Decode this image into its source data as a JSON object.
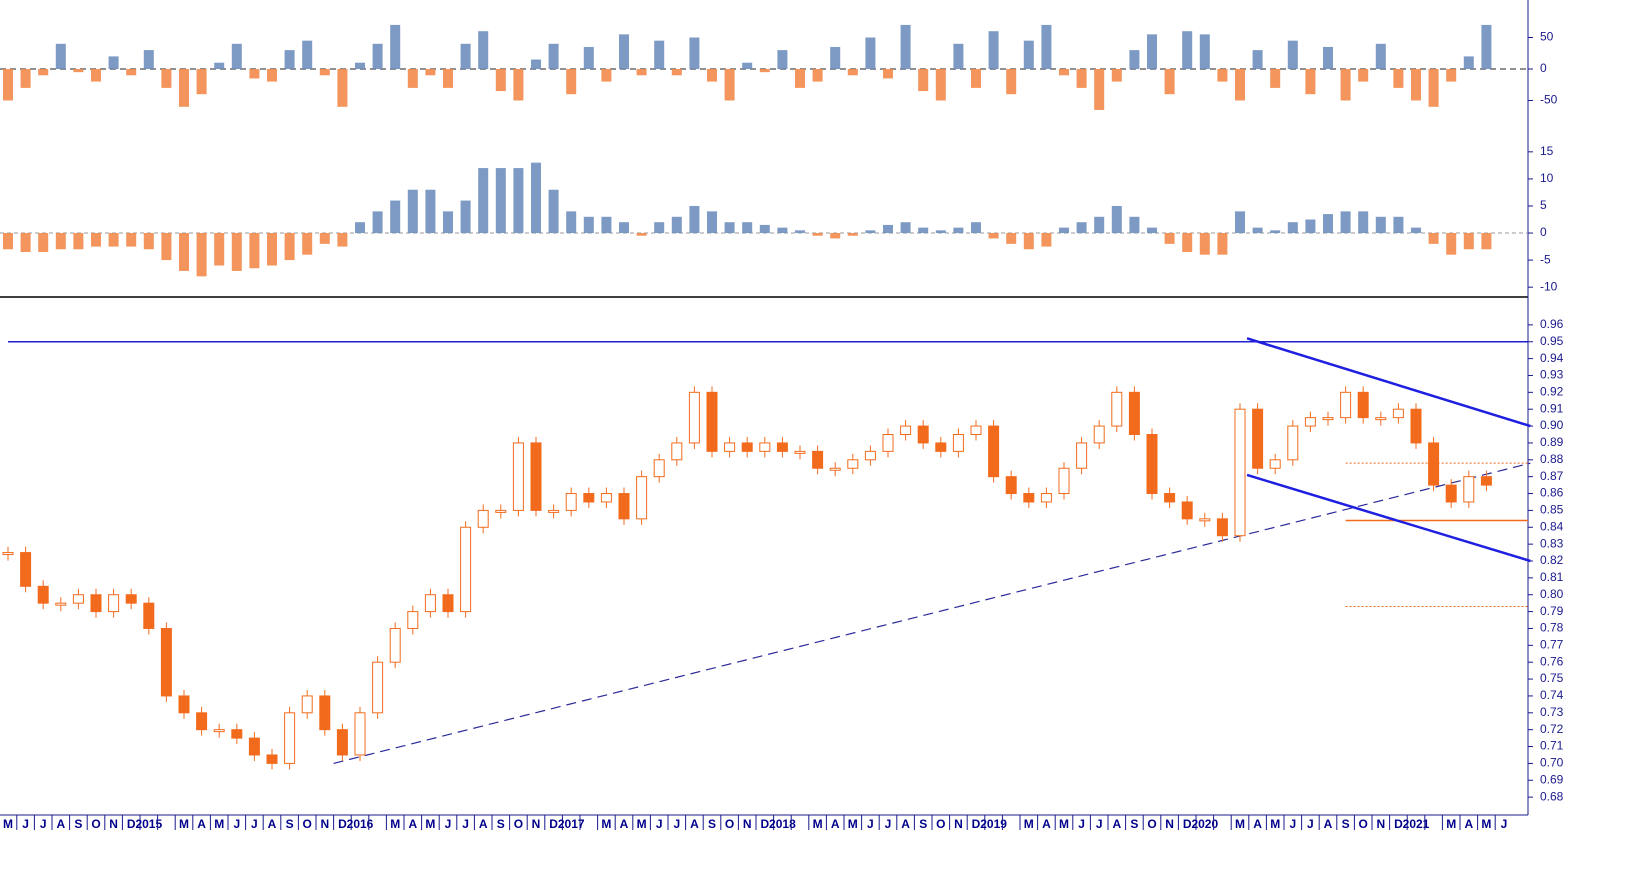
{
  "chart_data": [
    {
      "type": "bar",
      "pos_color": "#6f8fbf",
      "neg_color": "#f28a4a",
      "values": [
        -50,
        -30,
        -10,
        40,
        -5,
        -20,
        20,
        -10,
        30,
        -30,
        -60,
        -40,
        10,
        40,
        -15,
        -20,
        30,
        45,
        -10,
        -60,
        10,
        40,
        70,
        -30,
        -10,
        -30,
        40,
        60,
        -35,
        -50,
        15,
        40,
        -40,
        35,
        -20,
        55,
        -10,
        45,
        -10,
        50,
        -20,
        -50,
        10,
        -5,
        30,
        -30,
        -20,
        35,
        -10,
        50,
        -15,
        70,
        -35,
        -50,
        40,
        -30,
        60,
        -40,
        45,
        70,
        -10,
        -30,
        -65,
        -20,
        30,
        55,
        -40,
        60,
        55,
        -20,
        -50,
        30,
        -30,
        45,
        -40,
        35,
        -50,
        -20,
        40,
        -30,
        -50,
        -60,
        -20,
        20,
        70,
        null
      ],
      "ylim": [
        -100,
        100
      ],
      "yticks": [
        50,
        0,
        -50
      ]
    },
    {
      "type": "bar",
      "pos_color": "#6f8fbf",
      "neg_color": "#f28a4a",
      "values": [
        -3,
        -3.5,
        -3.5,
        -3,
        -3,
        -2.5,
        -2.5,
        -2.5,
        -3,
        -5,
        -7,
        -8,
        -6,
        -7,
        -6.5,
        -6,
        -5,
        -4,
        -2,
        -2.5,
        2,
        4,
        6,
        8,
        8,
        4,
        6,
        12,
        12,
        12,
        13,
        8,
        4,
        3,
        3,
        2,
        -0.5,
        2,
        3,
        5,
        4,
        2,
        2,
        1.5,
        1,
        0.5,
        -0.5,
        -1,
        -0.5,
        0.5,
        1.5,
        2,
        1,
        0.5,
        1,
        2,
        -1,
        -2,
        -3,
        -2.5,
        1,
        2,
        3,
        5,
        3,
        1,
        -2,
        -3.5,
        -4,
        -4,
        4,
        1,
        0.5,
        2,
        2.5,
        3.5,
        4,
        4,
        3,
        3,
        1,
        -2,
        -4,
        -3,
        -3,
        null
      ],
      "ylim": [
        -12,
        17
      ],
      "yticks": [
        15,
        10,
        5,
        0,
        -5,
        -10
      ]
    },
    {
      "type": "candlestick",
      "color": "#f26b1d",
      "categories": [
        "M",
        "J",
        "J",
        "A",
        "S",
        "O",
        "N",
        "D",
        "2015",
        null,
        "M",
        "A",
        "M",
        "J",
        "J",
        "A",
        "S",
        "O",
        "N",
        "D",
        "2016",
        null,
        "M",
        "A",
        "M",
        "J",
        "J",
        "A",
        "S",
        "O",
        "N",
        "D",
        "2017",
        null,
        "M",
        "A",
        "M",
        "J",
        "J",
        "A",
        "S",
        "O",
        "N",
        "D",
        "2018",
        null,
        "M",
        "A",
        "M",
        "J",
        "J",
        "A",
        "S",
        "O",
        "N",
        "D",
        "2019",
        null,
        "M",
        "A",
        "M",
        "J",
        "J",
        "A",
        "S",
        "O",
        "N",
        "D",
        "2020",
        null,
        "M",
        "A",
        "M",
        "J",
        "J",
        "A",
        "S",
        "O",
        "N",
        "D",
        "2021",
        null,
        "M",
        "A",
        "M",
        "J"
      ],
      "values": [
        0.825,
        0.805,
        0.795,
        0.795,
        0.8,
        0.79,
        0.8,
        0.795,
        0.78,
        0.74,
        0.73,
        0.72,
        0.72,
        0.715,
        0.705,
        0.7,
        0.73,
        0.74,
        0.72,
        0.705,
        0.73,
        0.76,
        0.78,
        0.79,
        0.8,
        0.79,
        0.84,
        0.85,
        0.85,
        0.89,
        0.85,
        0.85,
        0.86,
        0.855,
        0.86,
        0.845,
        0.87,
        0.88,
        0.89,
        0.92,
        0.885,
        0.89,
        0.885,
        0.89,
        0.885,
        0.885,
        0.875,
        0.875,
        0.88,
        0.885,
        0.895,
        0.9,
        0.89,
        0.885,
        0.895,
        0.9,
        0.87,
        0.86,
        0.855,
        0.86,
        0.875,
        0.89,
        0.9,
        0.92,
        0.895,
        0.86,
        0.855,
        0.845,
        0.845,
        0.835,
        0.91,
        0.875,
        0.88,
        0.9,
        0.905,
        0.905,
        0.92,
        0.905,
        0.905,
        0.91,
        0.89,
        0.865,
        0.855,
        0.87,
        0.865,
        null
      ],
      "ylim": [
        0.67,
        0.97
      ],
      "yticks": [
        0.68,
        0.69,
        {
          "value": 0.7,
          "label": "0.70"
        },
        0.71,
        0.72,
        0.73,
        0.74,
        0.75,
        0.76,
        0.77,
        0.78,
        0.79,
        {
          "value": 0.8,
          "label": "0.80"
        },
        0.81,
        0.82,
        0.83,
        0.84,
        0.85,
        0.86,
        0.87,
        0.88,
        0.89,
        {
          "value": 0.9,
          "label": "0.90"
        },
        0.91,
        0.92,
        0.93,
        0.94,
        0.95,
        0.96
      ],
      "levels": [
        {
          "value": 0.95,
          "x0": 0,
          "color": "#1f1fcf",
          "dash": false
        },
        {
          "value": 0.878,
          "x0": 76,
          "color": "#f26b1d",
          "dash": true
        },
        {
          "value": 0.844,
          "x0": 76,
          "color": "#f26b1d",
          "dash": false
        },
        {
          "value": 0.793,
          "x0": 76,
          "color": "#f26b1d",
          "dash": true
        }
      ],
      "trendlines": [
        {
          "x": [
            18.5,
            86.5
          ],
          "y": [
            0.7,
            0.878
          ],
          "color": "#2a2a9a",
          "dash": true
        },
        {
          "x": [
            70.4,
            86.5
          ],
          "y": [
            0.952,
            0.9
          ],
          "color": "#1f1fdf",
          "dash": false
        },
        {
          "x": [
            70.4,
            86.5
          ],
          "y": [
            0.871,
            0.82
          ],
          "color": "#1f1fdf",
          "dash": false
        }
      ]
    }
  ]
}
